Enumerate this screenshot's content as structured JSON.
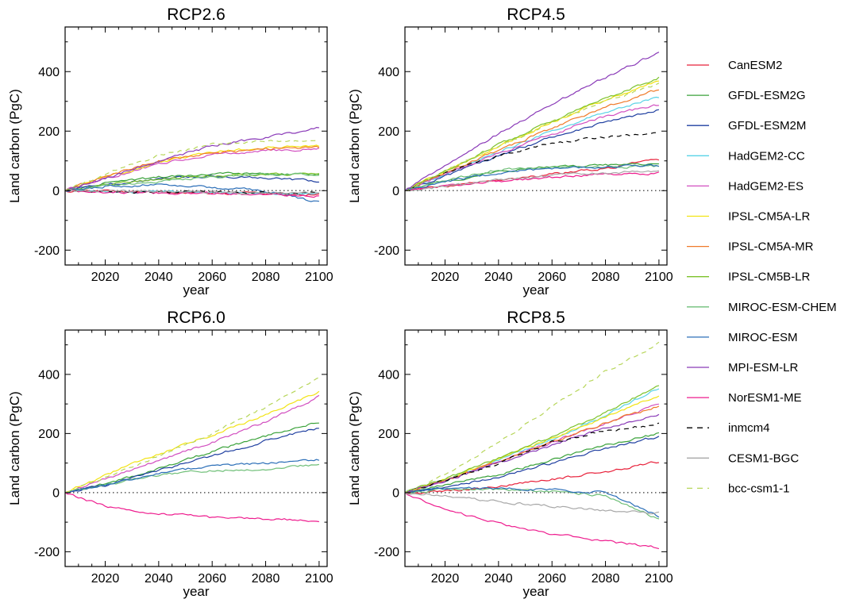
{
  "figure": {
    "ylabel": "Land carbon (PgC)",
    "xlabel": "year"
  },
  "legend": {
    "placement": "right",
    "items": [
      {
        "name": "CanESM2",
        "color": "#e8203a",
        "dash": false
      },
      {
        "name": "GFDL-ESM2G",
        "color": "#3aa23a",
        "dash": false
      },
      {
        "name": "GFDL-ESM2M",
        "color": "#1f3fa0",
        "dash": false
      },
      {
        "name": "HadGEM2-CC",
        "color": "#59d3e6",
        "dash": false
      },
      {
        "name": "HadGEM2-ES",
        "color": "#d24fc0",
        "dash": false
      },
      {
        "name": "IPSL-CM5A-LR",
        "color": "#f2e313",
        "dash": false
      },
      {
        "name": "IPSL-CM5A-MR",
        "color": "#f07a2a",
        "dash": false
      },
      {
        "name": "IPSL-CM5B-LR",
        "color": "#7cc22a",
        "dash": false
      },
      {
        "name": "MIROC-ESM-CHEM",
        "color": "#6fbf78",
        "dash": false
      },
      {
        "name": "MIROC-ESM",
        "color": "#2c6fb8",
        "dash": false
      },
      {
        "name": "MPI-ESM-LR",
        "color": "#8a3ab8",
        "dash": false
      },
      {
        "name": "NorESM1-ME",
        "color": "#ee1c8e",
        "dash": false
      },
      {
        "name": "inmcm4",
        "color": "#000000",
        "dash": true
      },
      {
        "name": "CESM1-BGC",
        "color": "#a8a8a8",
        "dash": false
      },
      {
        "name": "bcc-csm1-1",
        "color": "#b7d65a",
        "dash": true
      }
    ]
  },
  "chart_data": [
    {
      "type": "line",
      "title": "RCP2.6",
      "xlabel": "year",
      "ylabel": "Land carbon (PgC)",
      "xlim": [
        2005,
        2103
      ],
      "ylim": [
        -250,
        550
      ],
      "xticks": [
        2020,
        2040,
        2060,
        2080,
        2100
      ],
      "yticks": [
        -200,
        0,
        200,
        400
      ],
      "zero_line": "dotted",
      "x": [
        2005,
        2020,
        2040,
        2060,
        2080,
        2100
      ],
      "series": [
        {
          "name": "CanESM2",
          "values": [
            0,
            -2,
            -5,
            -8,
            -10,
            -15
          ]
        },
        {
          "name": "GFDL-ESM2G",
          "values": [
            0,
            25,
            45,
            55,
            58,
            55
          ]
        },
        {
          "name": "GFDL-ESM2M",
          "values": [
            0,
            20,
            40,
            50,
            45,
            30
          ]
        },
        {
          "name": "HadGEM2-CC",
          "values": [
            0,
            -3,
            -6,
            -8,
            -10,
            -12
          ]
        },
        {
          "name": "HadGEM2-ES",
          "values": [
            0,
            40,
            90,
            120,
            135,
            140
          ]
        },
        {
          "name": "IPSL-CM5A-LR",
          "values": [
            0,
            45,
            95,
            130,
            145,
            150
          ]
        },
        {
          "name": "IPSL-CM5A-MR",
          "values": [
            0,
            50,
            100,
            125,
            140,
            145
          ]
        },
        {
          "name": "IPSL-CM5B-LR",
          "values": [
            0,
            20,
            40,
            50,
            55,
            55
          ]
        },
        {
          "name": "MIROC-ESM-CHEM",
          "values": [
            0,
            15,
            30,
            45,
            55,
            55
          ]
        },
        {
          "name": "MIROC-ESM",
          "values": [
            0,
            15,
            20,
            10,
            0,
            -40
          ]
        },
        {
          "name": "MPI-ESM-LR",
          "values": [
            0,
            40,
            100,
            150,
            180,
            210
          ]
        },
        {
          "name": "NorESM1-ME",
          "values": [
            0,
            -5,
            -8,
            -10,
            -12,
            -20
          ]
        },
        {
          "name": "inmcm4",
          "values": [
            0,
            -2,
            -4,
            -6,
            -8,
            -10
          ]
        },
        {
          "name": "CESM1-BGC",
          "values": [
            0,
            0,
            -2,
            -5,
            -8,
            -10
          ]
        },
        {
          "name": "bcc-csm1-1",
          "values": [
            0,
            55,
            120,
            155,
            165,
            165
          ]
        }
      ]
    },
    {
      "type": "line",
      "title": "RCP4.5",
      "xlabel": "year",
      "ylabel": "Land carbon (PgC)",
      "xlim": [
        2005,
        2103
      ],
      "ylim": [
        -250,
        550
      ],
      "xticks": [
        2020,
        2040,
        2060,
        2080,
        2100
      ],
      "yticks": [
        -200,
        0,
        200,
        400
      ],
      "zero_line": "dotted",
      "x": [
        2005,
        2020,
        2040,
        2060,
        2080,
        2100
      ],
      "series": [
        {
          "name": "CanESM2",
          "values": [
            0,
            15,
            35,
            55,
            75,
            105
          ]
        },
        {
          "name": "GFDL-ESM2G",
          "values": [
            0,
            30,
            65,
            80,
            85,
            90
          ]
        },
        {
          "name": "GFDL-ESM2M",
          "values": [
            0,
            50,
            115,
            180,
            230,
            270
          ]
        },
        {
          "name": "HadGEM2-CC",
          "values": [
            0,
            55,
            130,
            200,
            265,
            315
          ]
        },
        {
          "name": "HadGEM2-ES",
          "values": [
            0,
            55,
            125,
            190,
            250,
            290
          ]
        },
        {
          "name": "IPSL-CM5A-LR",
          "values": [
            0,
            65,
            150,
            230,
            305,
            370
          ]
        },
        {
          "name": "IPSL-CM5A-MR",
          "values": [
            0,
            60,
            135,
            210,
            280,
            340
          ]
        },
        {
          "name": "IPSL-CM5B-LR",
          "values": [
            0,
            65,
            155,
            235,
            310,
            380
          ]
        },
        {
          "name": "MIROC-ESM-CHEM",
          "values": [
            0,
            35,
            70,
            80,
            80,
            80
          ]
        },
        {
          "name": "MIROC-ESM",
          "values": [
            0,
            30,
            60,
            75,
            80,
            85
          ]
        },
        {
          "name": "MPI-ESM-LR",
          "values": [
            0,
            85,
            190,
            290,
            380,
            465
          ]
        },
        {
          "name": "NorESM1-ME",
          "values": [
            0,
            15,
            30,
            45,
            55,
            60
          ]
        },
        {
          "name": "inmcm4",
          "values": [
            0,
            60,
            120,
            160,
            180,
            195
          ]
        },
        {
          "name": "CESM1-BGC",
          "values": [
            0,
            15,
            35,
            50,
            60,
            65
          ]
        },
        {
          "name": "bcc-csm1-1",
          "values": [
            0,
            65,
            150,
            230,
            300,
            360
          ]
        }
      ]
    },
    {
      "type": "line",
      "title": "RCP6.0",
      "xlabel": "year",
      "ylabel": "Land carbon (PgC)",
      "xlim": [
        2005,
        2103
      ],
      "ylim": [
        -250,
        550
      ],
      "xticks": [
        2020,
        2040,
        2060,
        2080,
        2100
      ],
      "yticks": [
        -200,
        0,
        200,
        400
      ],
      "zero_line": "dotted",
      "x": [
        2005,
        2020,
        2040,
        2060,
        2080,
        2100
      ],
      "series": [
        {
          "name": "GFDL-ESM2G",
          "values": [
            0,
            30,
            80,
            140,
            190,
            240
          ]
        },
        {
          "name": "GFDL-ESM2M",
          "values": [
            0,
            25,
            75,
            125,
            175,
            220
          ]
        },
        {
          "name": "HadGEM2-ES",
          "values": [
            0,
            45,
            110,
            170,
            240,
            325
          ]
        },
        {
          "name": "IPSL-CM5A-LR",
          "values": [
            0,
            60,
            130,
            195,
            265,
            340
          ]
        },
        {
          "name": "MIROC-ESM-CHEM",
          "values": [
            0,
            25,
            60,
            75,
            80,
            95
          ]
        },
        {
          "name": "MIROC-ESM",
          "values": [
            0,
            25,
            65,
            90,
            100,
            110
          ]
        },
        {
          "name": "NorESM1-ME",
          "values": [
            0,
            -45,
            -70,
            -85,
            -90,
            -95
          ]
        },
        {
          "name": "bcc-csm1-1",
          "values": [
            0,
            50,
            125,
            200,
            290,
            390
          ]
        }
      ]
    },
    {
      "type": "line",
      "title": "RCP8.5",
      "xlabel": "year",
      "ylabel": "Land carbon (PgC)",
      "xlim": [
        2005,
        2103
      ],
      "ylim": [
        -250,
        550
      ],
      "xticks": [
        2020,
        2040,
        2060,
        2080,
        2100
      ],
      "yticks": [
        -200,
        0,
        200,
        400
      ],
      "zero_line": "dotted",
      "x": [
        2005,
        2020,
        2040,
        2060,
        2080,
        2100
      ],
      "series": [
        {
          "name": "CanESM2",
          "values": [
            0,
            5,
            20,
            45,
            70,
            105
          ]
        },
        {
          "name": "GFDL-ESM2G",
          "values": [
            0,
            25,
            60,
            110,
            160,
            200
          ]
        },
        {
          "name": "GFDL-ESM2M",
          "values": [
            0,
            20,
            50,
            100,
            150,
            190
          ]
        },
        {
          "name": "HadGEM2-CC",
          "values": [
            0,
            40,
            110,
            180,
            260,
            355
          ]
        },
        {
          "name": "HadGEM2-ES",
          "values": [
            0,
            40,
            105,
            170,
            235,
            300
          ]
        },
        {
          "name": "IPSL-CM5A-LR",
          "values": [
            0,
            45,
            115,
            185,
            255,
            330
          ]
        },
        {
          "name": "IPSL-CM5A-MR",
          "values": [
            0,
            40,
            105,
            170,
            235,
            295
          ]
        },
        {
          "name": "IPSL-CM5B-LR",
          "values": [
            0,
            45,
            115,
            190,
            270,
            365
          ]
        },
        {
          "name": "MIROC-ESM-CHEM",
          "values": [
            0,
            10,
            10,
            5,
            -10,
            -90
          ]
        },
        {
          "name": "MIROC-ESM",
          "values": [
            0,
            15,
            15,
            10,
            0,
            -80
          ]
        },
        {
          "name": "MPI-ESM-LR",
          "values": [
            0,
            40,
            100,
            160,
            220,
            265
          ]
        },
        {
          "name": "NorESM1-ME",
          "values": [
            0,
            -55,
            -105,
            -140,
            -165,
            -185
          ]
        },
        {
          "name": "inmcm4",
          "values": [
            0,
            40,
            100,
            170,
            210,
            230
          ]
        },
        {
          "name": "CESM1-BGC",
          "values": [
            0,
            -10,
            -30,
            -45,
            -60,
            -70
          ]
        },
        {
          "name": "bcc-csm1-1",
          "values": [
            0,
            60,
            170,
            290,
            410,
            505
          ]
        }
      ]
    }
  ]
}
